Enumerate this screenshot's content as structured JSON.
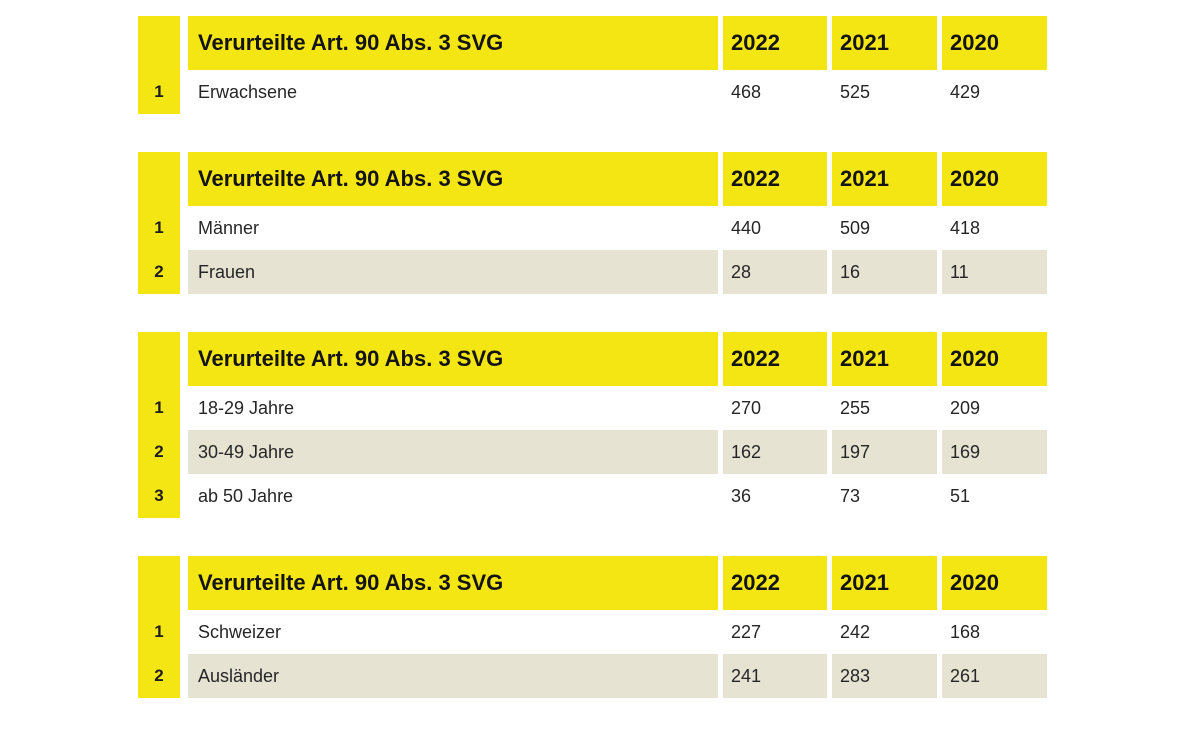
{
  "colors": {
    "header_yellow": "#f4e613",
    "row_beige": "#e6e3d3",
    "row_white": "#ffffff",
    "text_dark": "#1d1d1b"
  },
  "chart_data": [
    {
      "type": "table",
      "title": "Verurteilte Art. 90 Abs. 3 SVG",
      "columns": [
        "2022",
        "2021",
        "2020"
      ],
      "rows": [
        {
          "num": "1",
          "label": "Erwachsene",
          "values": [
            "468",
            "525",
            "429"
          ]
        }
      ]
    },
    {
      "type": "table",
      "title": "Verurteilte Art. 90 Abs. 3 SVG",
      "columns": [
        "2022",
        "2021",
        "2020"
      ],
      "rows": [
        {
          "num": "1",
          "label": "Männer",
          "values": [
            "440",
            "509",
            "418"
          ]
        },
        {
          "num": "2",
          "label": "Frauen",
          "values": [
            "28",
            "16",
            "11"
          ]
        }
      ]
    },
    {
      "type": "table",
      "title": "Verurteilte Art. 90 Abs. 3 SVG",
      "columns": [
        "2022",
        "2021",
        "2020"
      ],
      "rows": [
        {
          "num": "1",
          "label": "18-29 Jahre",
          "values": [
            "270",
            "255",
            "209"
          ]
        },
        {
          "num": "2",
          "label": "30-49 Jahre",
          "values": [
            "162",
            "197",
            "169"
          ]
        },
        {
          "num": "3",
          "label": "ab 50 Jahre",
          "values": [
            "36",
            "73",
            "51"
          ]
        }
      ]
    },
    {
      "type": "table",
      "title": "Verurteilte Art. 90 Abs. 3 SVG",
      "columns": [
        "2022",
        "2021",
        "2020"
      ],
      "rows": [
        {
          "num": "1",
          "label": "Schweizer",
          "values": [
            "227",
            "242",
            "168"
          ]
        },
        {
          "num": "2",
          "label": "Ausländer",
          "values": [
            "241",
            "283",
            "261"
          ]
        }
      ]
    }
  ]
}
